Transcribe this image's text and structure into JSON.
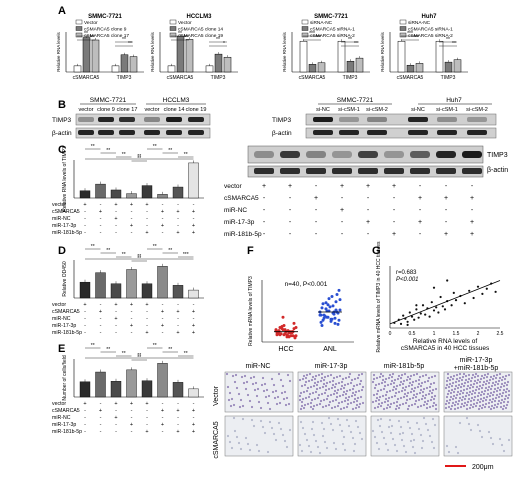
{
  "panels": {
    "A": {
      "letter": "A",
      "charts": [
        {
          "title": "SMMC-7721",
          "ylabel": "Relative RNA levels",
          "legend": [
            "Vector",
            "cSMARCA5 clone 9",
            "cSMARCA5 clone 17"
          ],
          "categories": [
            "cSMARCA5",
            "TIMP3"
          ],
          "sig": [
            "**",
            "**",
            "**",
            "**"
          ]
        },
        {
          "title": "HCCLM3",
          "ylabel": "Relative RNA levels",
          "legend": [
            "Vector",
            "cSMARCA5 clone 14",
            "cSMARCA5 clone 19"
          ],
          "categories": [
            "cSMARCA5",
            "TIMP3"
          ],
          "sig": [
            "**",
            "**",
            "**",
            "*"
          ]
        },
        {
          "title": "SMMC-7721",
          "ylabel": "Relative RNA levels",
          "legend": [
            "siRNA-NC",
            "cSMARCA5 siRNA-1",
            "cSMARCA5 siRNA-2"
          ],
          "categories": [
            "cSMARCA5",
            "TIMP3"
          ],
          "sig": [
            "***",
            "***",
            "**",
            "**"
          ]
        },
        {
          "title": "Huh7",
          "ylabel": "Relative RNA levels",
          "legend": [
            "siRNA-NC",
            "cSMARCA5 siRNA-1",
            "cSMARCA5 siRNA-2"
          ],
          "categories": [
            "cSMARCA5",
            "TIMP3"
          ],
          "sig": [
            "***",
            "***",
            "**",
            "**"
          ]
        }
      ]
    },
    "B": {
      "letter": "B",
      "left": {
        "groups": [
          "SMMC-7721",
          "HCCLM3"
        ],
        "lanes": [
          "vector",
          "clone 9",
          "clone 17",
          "vector",
          "clone 14",
          "clone 19"
        ],
        "rows": [
          "TIMP3",
          "β-actin"
        ]
      },
      "right": {
        "groups": [
          "SMMC-7721",
          "Huh7"
        ],
        "lanes": [
          "si-NC",
          "si-cSM-1",
          "si-cSM-2",
          "si-NC",
          "si-cSM-1",
          "si-cSM-2"
        ],
        "rows": [
          "TIMP3",
          "β-actin"
        ]
      }
    },
    "C": {
      "letter": "C",
      "ylabel": "Relative RNA levels of TIMP3",
      "sig": [
        "**",
        "**",
        "**",
        "**",
        "**",
        "**",
        "**",
        "**"
      ],
      "row_labels": [
        "vector",
        "cSMARCA5",
        "miR-NC",
        "miR-17-3p",
        "miR-181b-5p"
      ],
      "blot_rows": [
        "TIMP3",
        "β-actin"
      ]
    },
    "D": {
      "letter": "D",
      "ylabel": "Relative OD450",
      "sig": [
        "**",
        "**",
        "**",
        "**",
        "**",
        "**",
        "***",
        "**"
      ],
      "row_labels": [
        "vector",
        "cSMARCA5",
        "miR-NC",
        "miR-17-3p",
        "miR-181b-5p"
      ]
    },
    "E": {
      "letter": "E",
      "ylabel": "Number of cells/field",
      "sig": [
        "**",
        "**",
        "**",
        "**",
        "**",
        "**",
        "**",
        "**"
      ],
      "row_labels": [
        "vector",
        "cSMARCA5",
        "miR-NC",
        "miR-17-3p",
        "miR-181b-5p"
      ]
    },
    "F": {
      "letter": "F",
      "annot": "n=40,  P<0.001",
      "ylabel": "Relative mRNA levels of TIMP3",
      "groups": [
        "HCC",
        "ANL"
      ]
    },
    "G": {
      "letter": "G",
      "r": "r=0.683",
      "p": "P<0.001",
      "ylabel": "Relative mRNA levels of TIMP3 in 40 HCC tissues",
      "xlabel1": "Relative RNA levels of",
      "xlabel2": "cSMARCA5 in 40 HCC tissues"
    },
    "H": {
      "cols": [
        "miR-NC",
        "miR-17-3p",
        "miR-181b-5p",
        "miR-17-3p\n+miR-181b-5p"
      ],
      "col1": "miR-NC",
      "col2": "miR-17-3p",
      "col3": "miR-181b-5p",
      "col4a": "miR-17-3p",
      "col4b": "+miR-181b-5p",
      "rows": [
        "Vector",
        "cSMARCA5"
      ],
      "scale": "200μm"
    }
  },
  "colors": {
    "dark": "#3a3a3a",
    "mid": "#7a7a7a",
    "light": "#bdbdbd",
    "scatterRed": "#d22a2a",
    "scatterBlue": "#2a4fd2",
    "scaleRed": "#e01818",
    "stain": "#8f7fb5"
  },
  "chart_data": [
    {
      "type": "bar",
      "title": "SMMC-7721",
      "ylabel": "Relative RNA levels",
      "categories": [
        "cSMARCA5",
        "TIMP3"
      ],
      "series": [
        {
          "name": "Vector",
          "values": [
            1,
            1
          ]
        },
        {
          "name": "cSMARCA5 clone 9",
          "values": [
            5.6,
            2.8
          ]
        },
        {
          "name": "cSMARCA5 clone 17",
          "values": [
            5.2,
            2.5
          ]
        }
      ]
    },
    {
      "type": "bar",
      "title": "HCCLM3",
      "ylabel": "Relative RNA levels",
      "categories": [
        "cSMARCA5",
        "TIMP3"
      ],
      "series": [
        {
          "name": "Vector",
          "values": [
            1,
            1
          ]
        },
        {
          "name": "cSMARCA5 clone 14",
          "values": [
            5.8,
            2.9
          ]
        },
        {
          "name": "cSMARCA5 clone 19",
          "values": [
            5.3,
            2.4
          ]
        }
      ]
    },
    {
      "type": "bar",
      "title": "SMMC-7721",
      "ylabel": "Relative RNA levels",
      "categories": [
        "cSMARCA5",
        "TIMP3"
      ],
      "series": [
        {
          "name": "siRNA-NC",
          "values": [
            1,
            1
          ]
        },
        {
          "name": "cSMARCA5 siRNA-1",
          "values": [
            0.25,
            0.35
          ]
        },
        {
          "name": "cSMARCA5 siRNA-2",
          "values": [
            0.3,
            0.45
          ]
        }
      ]
    },
    {
      "type": "bar",
      "title": "Huh7",
      "ylabel": "Relative RNA levels",
      "categories": [
        "cSMARCA5",
        "TIMP3"
      ],
      "series": [
        {
          "name": "siRNA-NC",
          "values": [
            1,
            1
          ]
        },
        {
          "name": "cSMARCA5 siRNA-1",
          "values": [
            0.22,
            0.32
          ]
        },
        {
          "name": "cSMARCA5 siRNA-2",
          "values": [
            0.28,
            0.4
          ]
        }
      ]
    },
    {
      "type": "bar",
      "ylabel": "Relative RNA levels of TIMP3",
      "values": [
        1.0,
        1.9,
        1.1,
        0.6,
        1.7,
        0.5,
        1.5,
        4.8
      ]
    },
    {
      "type": "bar",
      "ylabel": "Relative OD450",
      "values": [
        1.0,
        1.6,
        0.9,
        1.8,
        0.9,
        2.0,
        0.8,
        0.5
      ]
    },
    {
      "type": "bar",
      "ylabel": "Number of cells/field",
      "values": [
        280,
        460,
        290,
        500,
        300,
        620,
        270,
        150
      ]
    },
    {
      "type": "scatter",
      "ylabel": "Relative mRNA levels of TIMP3",
      "categories": [
        "HCC",
        "ANL"
      ],
      "series": [
        {
          "name": "HCC",
          "values": [
            1.2,
            1.0,
            0.7,
            1.5,
            0.9,
            0.6,
            1.1,
            2.4,
            0.8,
            1.3,
            0.5,
            1.6,
            1.0,
            0.4,
            0.9,
            1.2,
            0.7,
            1.4,
            0.6,
            1.0,
            0.8,
            1.1,
            0.9,
            0.5,
            1.3,
            0.7,
            1.0,
            0.6,
            1.2,
            0.8,
            1.8,
            0.9,
            0.7,
            1.1,
            0.5,
            1.0,
            0.8,
            1.4,
            0.6,
            0.9
          ]
        },
        {
          "name": "ANL",
          "values": [
            2.6,
            3.1,
            2.2,
            3.8,
            1.9,
            2.9,
            4.4,
            2.4,
            3.3,
            1.7,
            2.8,
            3.6,
            2.1,
            5.0,
            2.7,
            3.0,
            2.3,
            4.1,
            1.8,
            3.4,
            2.5,
            2.9,
            3.9,
            2.0,
            3.2,
            2.6,
            4.6,
            2.2,
            3.0,
            1.6,
            2.8,
            3.5,
            2.4,
            3.7,
            2.1,
            2.9,
            4.2,
            2.6,
            3.1,
            2.3
          ]
        }
      ]
    },
    {
      "type": "scatter",
      "xlabel": "Relative RNA levels of cSMARCA5 in 40 HCC tissues",
      "ylabel": "Relative mRNA levels of TIMP3 in 40 HCC tissues",
      "xlim": [
        0,
        2.5
      ],
      "ylim": [
        0,
        6
      ],
      "x": [
        0.1,
        0.2,
        0.25,
        0.3,
        0.35,
        0.4,
        0.45,
        0.5,
        0.55,
        0.6,
        0.65,
        0.7,
        0.75,
        0.8,
        0.85,
        0.9,
        0.95,
        1.0,
        1.05,
        1.1,
        1.15,
        1.2,
        1.25,
        1.3,
        1.4,
        1.45,
        1.5,
        1.6,
        1.7,
        1.8,
        1.9,
        2.0,
        2.1,
        2.2,
        2.3,
        0.4,
        0.6,
        1.0,
        1.3,
        2.4
      ],
      "y": [
        0.5,
        0.8,
        0.4,
        1.2,
        0.9,
        0.6,
        1.5,
        1.1,
        0.8,
        1.8,
        1.0,
        1.4,
        2.2,
        1.3,
        1.9,
        1.1,
        2.5,
        1.7,
        2.0,
        1.5,
        3.0,
        2.1,
        1.8,
        2.6,
        2.2,
        3.4,
        2.7,
        3.1,
        2.4,
        3.6,
        2.9,
        4.0,
        3.3,
        3.8,
        4.3,
        0.3,
        2.2,
        3.9,
        4.6,
        3.5
      ]
    }
  ]
}
